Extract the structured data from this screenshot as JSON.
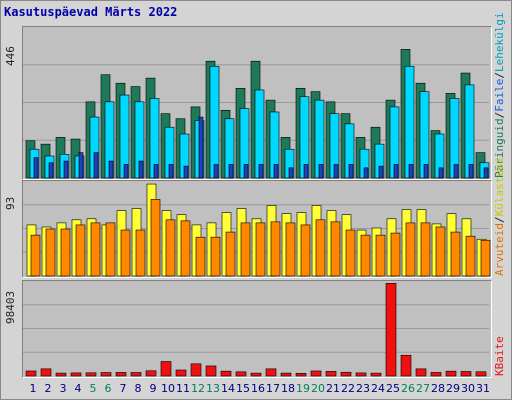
{
  "title": "Kasutuspäevad Märts 2022",
  "colors": {
    "hits": "#1f7a5a",
    "files": "#00d8ff",
    "pages": "#2040c0",
    "visits": "#ffff33",
    "sites": "#ff8800",
    "kbytes": "#ee1111",
    "panel_bg": "#c0c0c0",
    "frame_bg": "#d4d4d4",
    "weekend_label": "#008060",
    "weekday_label": "#000080"
  },
  "labels": {
    "hits": "Päringuid",
    "files": "Faile",
    "pages": "Lehekülgi",
    "visits": "Külastusi",
    "sites": "Arvuteid",
    "kbytes": "KBaite",
    "separator": "/"
  },
  "chart_data": [
    {
      "type": "bar",
      "panel": "top",
      "x": [
        1,
        2,
        3,
        4,
        5,
        6,
        7,
        8,
        9,
        10,
        11,
        12,
        13,
        14,
        15,
        16,
        17,
        18,
        19,
        20,
        21,
        22,
        23,
        24,
        25,
        26,
        27,
        28,
        29,
        30,
        31
      ],
      "ylim": [
        0,
        446
      ],
      "ymax_label": "446",
      "series": [
        {
          "name": "Päringuid",
          "values": [
            110,
            100,
            120,
            115,
            225,
            305,
            280,
            270,
            295,
            190,
            175,
            210,
            345,
            200,
            265,
            345,
            230,
            120,
            265,
            255,
            225,
            190,
            120,
            150,
            230,
            380,
            280,
            140,
            250,
            310,
            75
          ]
        },
        {
          "name": "Faile",
          "values": [
            85,
            65,
            70,
            65,
            180,
            225,
            245,
            225,
            235,
            150,
            130,
            170,
            330,
            175,
            205,
            260,
            195,
            85,
            240,
            230,
            190,
            160,
            85,
            100,
            210,
            330,
            255,
            130,
            235,
            275,
            45
          ]
        },
        {
          "name": "Lehekülgi",
          "values": [
            60,
            45,
            50,
            75,
            75,
            50,
            40,
            50,
            40,
            40,
            35,
            180,
            40,
            40,
            40,
            40,
            40,
            30,
            40,
            40,
            40,
            40,
            30,
            35,
            40,
            40,
            40,
            30,
            40,
            40,
            30
          ]
        }
      ]
    },
    {
      "type": "bar",
      "panel": "middle",
      "x": [
        1,
        2,
        3,
        4,
        5,
        6,
        7,
        8,
        9,
        10,
        11,
        12,
        13,
        14,
        15,
        16,
        17,
        18,
        19,
        20,
        21,
        22,
        23,
        24,
        25,
        26,
        27,
        28,
        29,
        30,
        31
      ],
      "ylim": [
        0,
        93
      ],
      "ymax_label": "93",
      "series": [
        {
          "name": "Külastusi",
          "values": [
            50,
            48,
            52,
            55,
            56,
            50,
            64,
            66,
            90,
            64,
            60,
            50,
            52,
            62,
            66,
            56,
            69,
            61,
            62,
            69,
            64,
            60,
            45,
            47,
            56,
            65,
            65,
            51,
            61,
            56,
            36
          ]
        },
        {
          "name": "Arvuteid",
          "values": [
            40,
            46,
            46,
            50,
            52,
            52,
            45,
            45,
            75,
            55,
            54,
            38,
            38,
            43,
            52,
            52,
            53,
            52,
            50,
            55,
            53,
            45,
            40,
            40,
            42,
            52,
            52,
            48,
            43,
            39,
            35
          ]
        }
      ]
    },
    {
      "type": "bar",
      "panel": "bottom",
      "x": [
        1,
        2,
        3,
        4,
        5,
        6,
        7,
        8,
        9,
        10,
        11,
        12,
        13,
        14,
        15,
        16,
        17,
        18,
        19,
        20,
        21,
        22,
        23,
        24,
        25,
        26,
        27,
        28,
        29,
        30,
        31
      ],
      "ylim": [
        0,
        98403
      ],
      "ymax_label": "98403",
      "series": [
        {
          "name": "KBaite",
          "values": [
            5200,
            7400,
            3000,
            3200,
            3300,
            3600,
            3700,
            3600,
            5400,
            15000,
            6200,
            12600,
            10400,
            5000,
            4300,
            3000,
            7400,
            3000,
            2800,
            5200,
            4800,
            3900,
            3200,
            3000,
            96000,
            21500,
            7400,
            3700,
            5000,
            4700,
            4400
          ]
        }
      ]
    }
  ],
  "day_labels": [
    "1",
    "2",
    "3",
    "4",
    "5",
    "6",
    "7",
    "8",
    "9",
    "10",
    "11",
    "12",
    "13",
    "14",
    "15",
    "16",
    "17",
    "18",
    "19",
    "20",
    "21",
    "22",
    "23",
    "24",
    "25",
    "26",
    "27",
    "28",
    "29",
    "30",
    "31"
  ],
  "weekend_days": [
    5,
    6,
    12,
    13,
    19,
    20,
    26,
    27
  ]
}
